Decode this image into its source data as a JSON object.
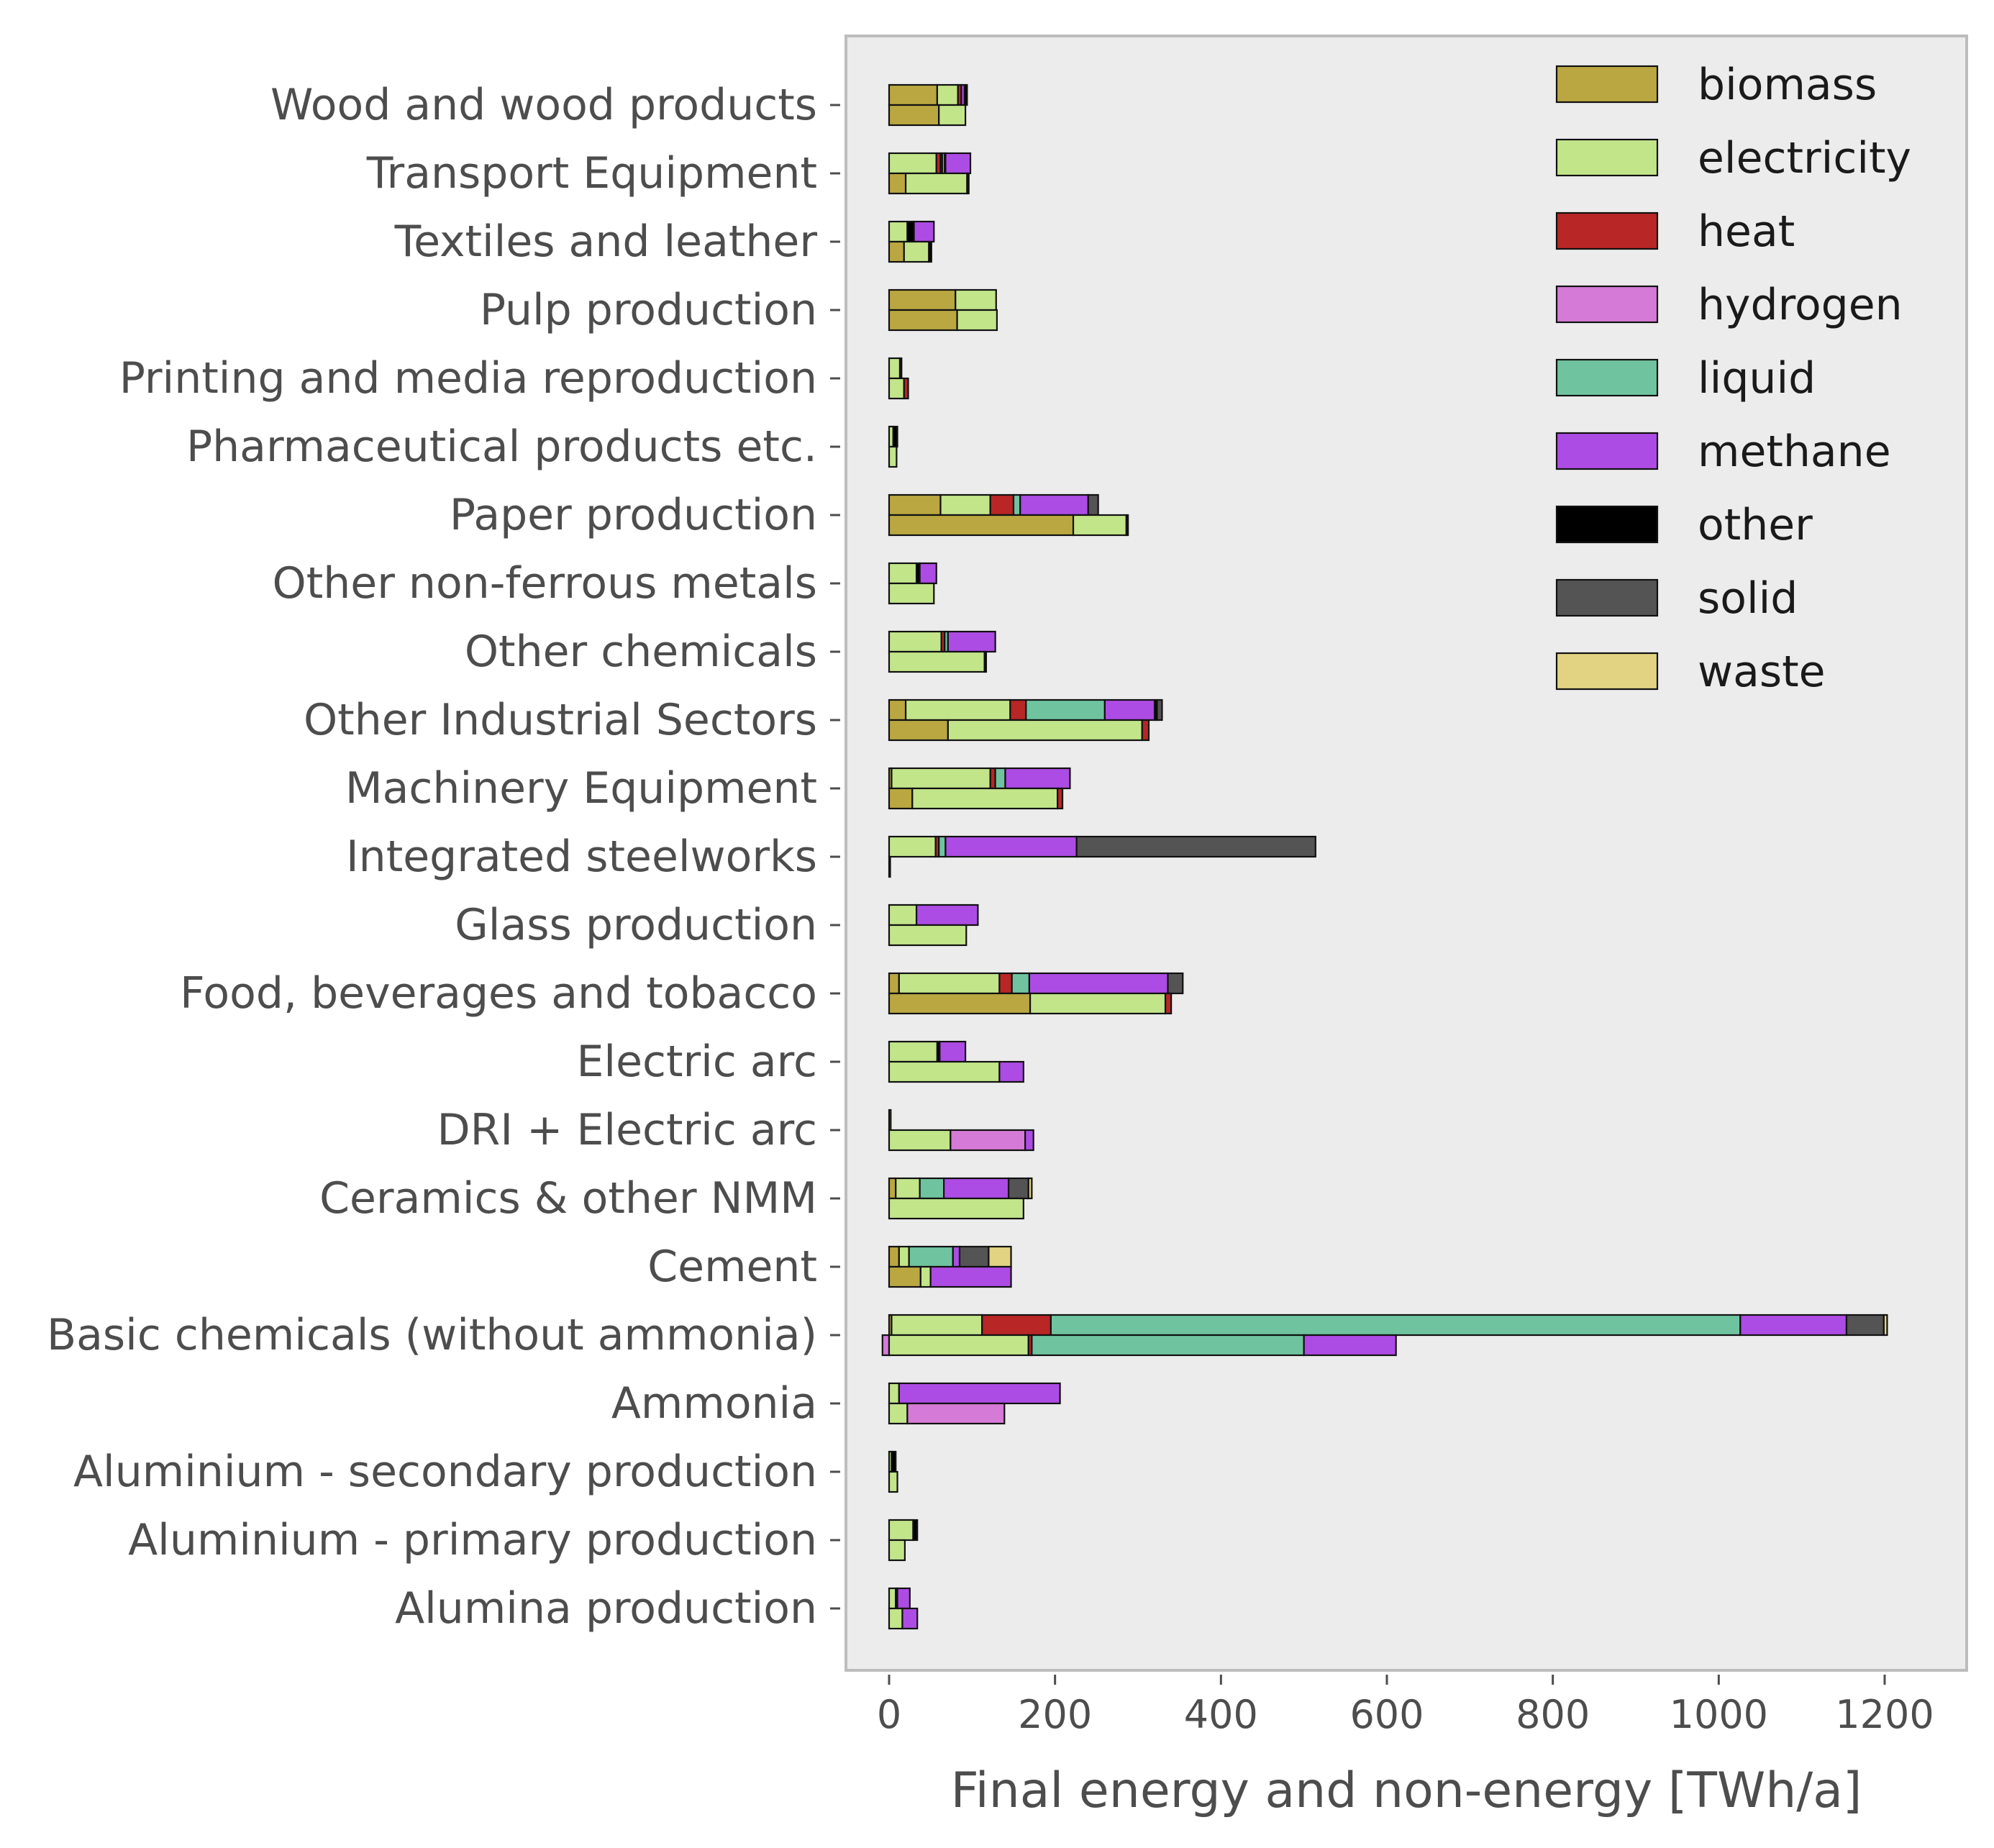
{
  "chart_data": {
    "type": "bar",
    "orientation": "horizontal",
    "stacked": true,
    "bars_per_category": 2,
    "xlabel": "Final energy and non-energy [TWh/a]",
    "ylabel": "",
    "xlim": [
      -50,
      1300
    ],
    "xticks": [
      0,
      200,
      400,
      600,
      800,
      1000,
      1200
    ],
    "grid": false,
    "legend_position": "top-right",
    "categories": [
      "Wood and wood products",
      "Transport Equipment",
      "Textiles and leather",
      "Pulp production",
      "Printing and media reproduction",
      "Pharmaceutical products etc.",
      "Paper production",
      "Other non-ferrous metals",
      "Other chemicals",
      "Other Industrial Sectors",
      "Machinery Equipment",
      "Integrated steelworks",
      "Glass production",
      "Food, beverages and tobacco",
      "Electric arc",
      "DRI + Electric arc",
      "Ceramics & other NMM",
      "Cement",
      "Basic chemicals (without ammonia)",
      "Ammonia",
      "Aluminium - secondary production",
      "Aluminium - primary production",
      "Alumina production"
    ],
    "carriers": [
      "biomass",
      "electricity",
      "heat",
      "hydrogen",
      "liquid",
      "methane",
      "other",
      "solid",
      "waste"
    ],
    "colors": {
      "biomass": "#baa741",
      "electricity": "#c2e58a",
      "heat": "#b82626",
      "hydrogen": "#d57ad6",
      "liquid": "#6fc49f",
      "methane": "#ad4ce4",
      "other": "#000000",
      "solid": "#545454",
      "waste": "#e1d382"
    },
    "series_upper": {
      "name": "upper bar",
      "values": [
        {
          "biomass": 58,
          "electricity": 25,
          "heat": 4,
          "methane": 4,
          "other": 3
        },
        {
          "electricity": 57,
          "heat": 5,
          "methane": 2,
          "liquid": 3,
          "other": 1,
          "methane_2": 30
        },
        {
          "electricity": 22,
          "other": 8,
          "methane": 24
        },
        {
          "biomass": 80,
          "electricity": 49
        },
        {
          "electricity": 13,
          "other": 2
        },
        {
          "electricity": 5,
          "other": 5
        },
        {
          "biomass": 62,
          "electricity": 60,
          "heat": 28,
          "liquid": 8,
          "methane": 82,
          "solid": 12
        },
        {
          "electricity": 33,
          "other": 4,
          "methane": 20
        },
        {
          "electricity": 63,
          "heat": 4,
          "liquid": 4,
          "methane": 57
        },
        {
          "biomass": 20,
          "electricity": 126,
          "heat": 19,
          "liquid": 95,
          "methane": 60,
          "other": 3,
          "solid": 6
        },
        {
          "biomass": 3,
          "electricity": 119,
          "heat": 6,
          "liquid": 12,
          "methane": 78
        },
        {
          "electricity": 56,
          "heat": 4,
          "liquid": 8,
          "methane": 158,
          "solid": 288
        },
        {
          "electricity": 33,
          "methane": 74
        },
        {
          "biomass": 12,
          "electricity": 121,
          "heat": 15,
          "liquid": 21,
          "methane": 167,
          "solid": 18
        },
        {
          "electricity": 58,
          "other": 3,
          "methane": 31
        },
        {
          "electricity": 2
        },
        {
          "biomass": 8,
          "electricity": 29,
          "liquid": 29,
          "methane": 78,
          "solid": 24,
          "waste": 4
        },
        {
          "biomass": 12,
          "electricity": 12,
          "liquid": 53,
          "methane": 8,
          "solid": 35,
          "waste": 27
        },
        {
          "biomass": 3,
          "electricity": 109,
          "heat": 83,
          "liquid": 831,
          "methane": 128,
          "solid": 45,
          "waste": 4
        },
        {
          "electricity": 12,
          "methane": 194
        },
        {
          "electricity": 3,
          "other": 5
        },
        {
          "electricity": 29,
          "other": 5
        },
        {
          "electricity": 8,
          "other": 2,
          "methane": 15
        }
      ]
    },
    "series_lower": {
      "name": "lower bar",
      "values": [
        {
          "biomass": 60,
          "electricity": 32
        },
        {
          "biomass": 20,
          "electricity": 74,
          "other": 2
        },
        {
          "biomass": 18,
          "electricity": 30,
          "other": 3
        },
        {
          "biomass": 82,
          "electricity": 48
        },
        {
          "electricity": 18,
          "heat": 5
        },
        {
          "electricity": 9
        },
        {
          "biomass": 222,
          "electricity": 64,
          "other": 2
        },
        {
          "electricity": 54
        },
        {
          "electricity": 115,
          "other": 2
        },
        {
          "biomass": 71,
          "electricity": 234,
          "heat": 8
        },
        {
          "biomass": 28,
          "electricity": 175,
          "heat": 6
        },
        {
          "electricity": 1
        },
        {
          "electricity": 93
        },
        {
          "biomass": 170,
          "electricity": 163,
          "heat": 7
        },
        {
          "electricity": 133,
          "methane": 29
        },
        {
          "electricity": 74,
          "hydrogen": 90,
          "methane": 10
        },
        {
          "electricity": 162
        },
        {
          "biomass": 38,
          "electricity": 12,
          "methane": 97
        },
        {
          "hydrogen": -8,
          "electricity": 168,
          "heat": 4,
          "liquid": 328,
          "methane": 111
        },
        {
          "electricity": 22,
          "hydrogen": 117
        },
        {
          "electricity": 10
        },
        {
          "electricity": 19
        },
        {
          "electricity": 16,
          "methane": 18
        }
      ]
    }
  }
}
